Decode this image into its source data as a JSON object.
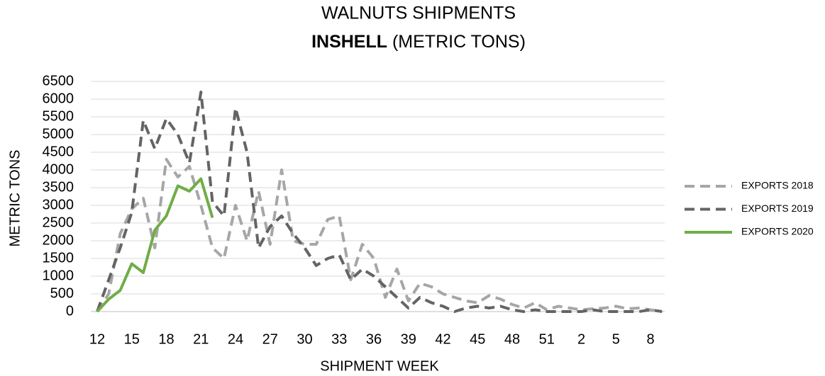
{
  "chart_data": {
    "type": "line",
    "title": "WALNUTS SHIPMENTS",
    "subtitle_bold": "INSHELL",
    "subtitle": "(METRIC TONS)",
    "x_label": "SHIPMENT WEEK",
    "y_label": "METRIC TONS",
    "categories": [
      "12",
      null,
      null,
      "15",
      null,
      null,
      "18",
      null,
      null,
      "21",
      null,
      null,
      "24",
      null,
      null,
      "27",
      null,
      null,
      "30",
      null,
      null,
      "33",
      null,
      null,
      "36",
      null,
      null,
      "39",
      null,
      null,
      "42",
      null,
      null,
      "45",
      null,
      null,
      "48",
      null,
      null,
      "51",
      null,
      null,
      "2",
      null,
      null,
      "5",
      null,
      null,
      "8",
      null
    ],
    "ylim": [
      0,
      6500
    ],
    "yticks": [
      0,
      500,
      1000,
      1500,
      2000,
      2500,
      3000,
      3500,
      4000,
      4500,
      5000,
      5500,
      6000,
      6500
    ],
    "grid": true,
    "legend": "right",
    "series": [
      {
        "name": "EXPORTS 2018",
        "color": "#a6a6a6",
        "dashed": true,
        "values": [
          0,
          500,
          2200,
          2900,
          3200,
          1800,
          4300,
          3800,
          4100,
          3000,
          1800,
          1500,
          3000,
          2000,
          3400,
          1900,
          4000,
          2000,
          1900,
          1900,
          2600,
          2700,
          900,
          1900,
          1500,
          400,
          1200,
          300,
          800,
          700,
          500,
          400,
          300,
          250,
          450,
          350,
          200,
          100,
          250,
          50,
          150,
          100,
          50,
          80,
          100,
          150,
          80,
          100,
          50,
          0
        ]
      },
      {
        "name": "EXPORTS 2019",
        "color": "#646464",
        "dashed": true,
        "values": [
          0,
          900,
          1800,
          2800,
          5400,
          4600,
          5450,
          5000,
          4200,
          6200,
          3100,
          2700,
          5750,
          4500,
          1800,
          2400,
          2700,
          2200,
          1800,
          1300,
          1500,
          1600,
          900,
          1200,
          1000,
          700,
          400,
          100,
          400,
          250,
          150,
          0,
          100,
          150,
          100,
          150,
          50,
          0,
          50,
          0,
          0,
          0,
          0,
          50,
          0,
          0,
          0,
          0,
          50,
          0
        ]
      },
      {
        "name": "EXPORTS 2020",
        "color": "#70ad47",
        "dashed": false,
        "values": [
          0,
          350,
          600,
          1350,
          1100,
          2300,
          2700,
          3550,
          3400,
          3750,
          2650,
          null,
          null,
          null,
          null,
          null,
          null,
          null,
          null,
          null,
          null,
          null,
          null,
          null,
          null,
          null,
          null,
          null,
          null,
          null,
          null,
          null,
          null,
          null,
          null,
          null,
          null,
          null,
          null,
          null,
          null,
          null,
          null,
          null,
          null,
          null,
          null,
          null,
          null,
          null
        ]
      }
    ]
  }
}
